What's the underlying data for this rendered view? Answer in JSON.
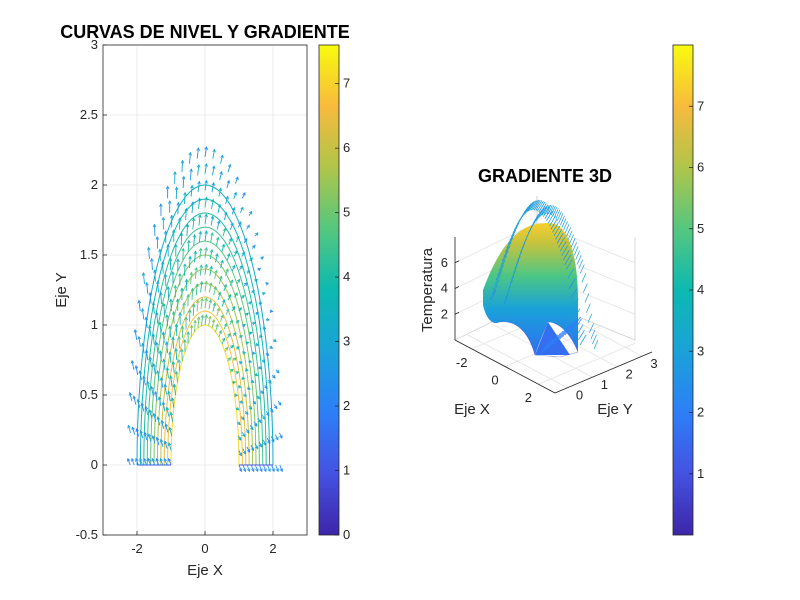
{
  "chart_data": [
    {
      "type": "contour+quiver",
      "title": "CURVAS DE NIVEL Y GRADIENTE",
      "xlabel": "Eje X",
      "ylabel": "Eje Y",
      "xlim": [
        -3,
        3
      ],
      "ylim": [
        -0.5,
        3
      ],
      "xticks": [
        "-2",
        "0",
        "2"
      ],
      "xtick_values": [
        -2,
        0,
        2
      ],
      "yticks": [
        "-0.5",
        "0",
        "0.5",
        "1",
        "1.5",
        "2",
        "2.5",
        "3"
      ],
      "ytick_values": [
        -0.5,
        0,
        0.5,
        1,
        1.5,
        2,
        2.5,
        3
      ],
      "grid": true,
      "domain": {
        "shape": "half-annulus",
        "r_inner": 1,
        "r_outer": 2,
        "theta_deg": [
          0,
          180
        ]
      },
      "contour_radii": [
        1.0,
        1.1,
        1.2,
        1.3,
        1.4,
        1.5,
        1.6,
        1.7,
        1.8,
        1.9,
        2.0
      ],
      "quiver": {
        "radii_count": 11,
        "angles_count": 31,
        "max_radius": 2.2
      },
      "colorbar": {
        "range": [
          0,
          7.6
        ],
        "ticks": [
          "0",
          "1",
          "2",
          "3",
          "4",
          "5",
          "6",
          "7"
        ],
        "tick_values": [
          0,
          1,
          2,
          3,
          4,
          5,
          6,
          7
        ]
      },
      "colormap": "parula"
    },
    {
      "type": "surface+quiver3",
      "title": "GRADIENTE 3D",
      "xlabel": "Eje X",
      "ylabel": "Eje Y",
      "zlabel": "Temperatura",
      "xticks": [
        "-2",
        "0",
        "2"
      ],
      "xtick_values": [
        -2,
        0,
        2
      ],
      "yticks": [
        "0",
        "1",
        "2",
        "3"
      ],
      "ytick_values": [
        0,
        1,
        2,
        3
      ],
      "zticks": [
        "2",
        "4",
        "6"
      ],
      "ztick_values": [
        2,
        4,
        6
      ],
      "zlim": [
        0,
        8
      ],
      "grid": true,
      "colorbar": {
        "range": [
          0,
          8
        ],
        "ticks": [
          "1",
          "2",
          "3",
          "4",
          "5",
          "6",
          "7"
        ],
        "tick_values": [
          1,
          2,
          3,
          4,
          5,
          6,
          7
        ]
      },
      "colormap": "parula"
    }
  ]
}
